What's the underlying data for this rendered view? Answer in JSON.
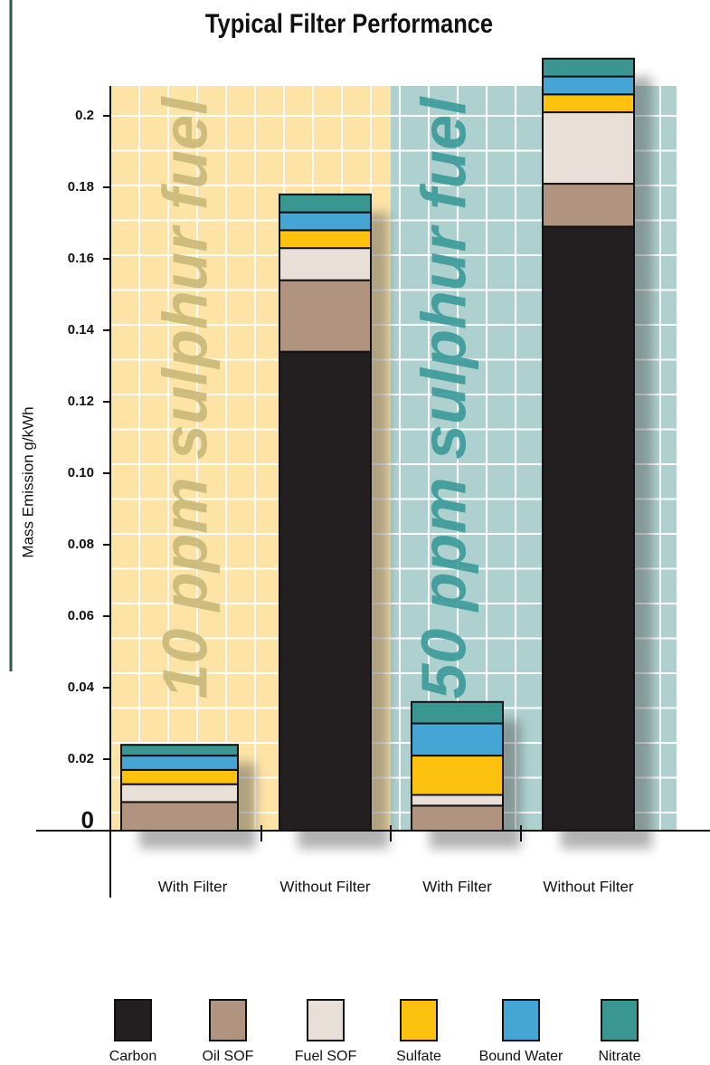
{
  "chart_data": {
    "type": "stacked_bar",
    "title": "Typical Filter Performance",
    "y_label": "Mass Emission g/kWh",
    "annotations": [
      "10 ppm sulphur fuel",
      "50 ppm sulphur fuel"
    ],
    "categories": [
      "With Filter",
      "Without Filter",
      "With Filter",
      "Without Filter"
    ],
    "series": [
      {
        "name": "Carbon",
        "color": "#231f20",
        "values": [
          0,
          0.134,
          0,
          0.169
        ]
      },
      {
        "name": "Oil SOF",
        "color": "#b09480",
        "values": [
          0.008,
          0.02,
          0.007,
          0.012
        ]
      },
      {
        "name": "Fuel SOF",
        "color": "#e8e0d8",
        "values": [
          0.005,
          0.009,
          0.003,
          0.02
        ]
      },
      {
        "name": "Sulfate",
        "color": "#fcc20e",
        "values": [
          0.004,
          0.005,
          0.011,
          0.005
        ]
      },
      {
        "name": "Bound Water",
        "color": "#45a5d5",
        "values": [
          0.004,
          0.005,
          0.009,
          0.005
        ]
      },
      {
        "name": "Nitrate",
        "color": "#3a9690",
        "values": [
          0.003,
          0.005,
          0.006,
          0.005
        ]
      }
    ],
    "ylim": [
      0,
      0.225
    ],
    "yticks": [
      0,
      0.02,
      0.04,
      0.06,
      0.08,
      {
        "value": 0.1,
        "label": "0.10"
      },
      0.12,
      0.14,
      0.16,
      0.18,
      0.2
    ],
    "legend": "bottom"
  }
}
